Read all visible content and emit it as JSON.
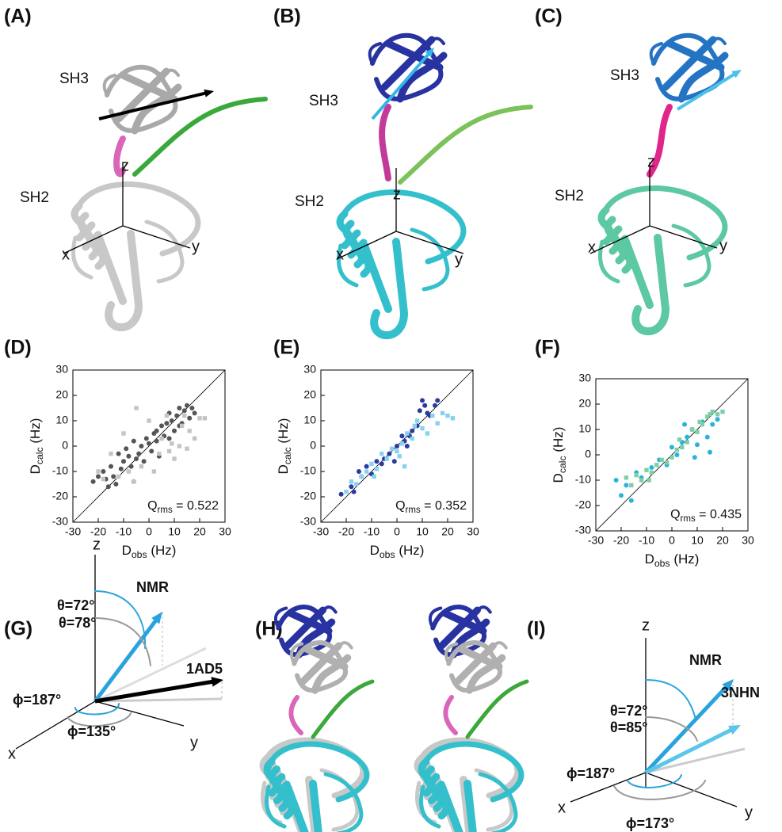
{
  "figure": {
    "structures": [
      {
        "label": "(A)",
        "sh3": "SH3",
        "sh2": "SH2",
        "axes": [
          "x",
          "y",
          "z"
        ]
      },
      {
        "label": "(B)",
        "sh3": "SH3",
        "sh2": "SH2",
        "axes": [
          "x",
          "y",
          "z"
        ]
      },
      {
        "label": "(C)",
        "sh3": "SH3",
        "sh2": "SH2",
        "axes": [
          "x",
          "y",
          "z"
        ]
      }
    ],
    "vector_g": {
      "label": "(G)",
      "axes": [
        "x",
        "y",
        "z"
      ],
      "texts": [
        "NMR",
        "1AD5",
        "θ=72°",
        "θ=78°",
        "ϕ=187°",
        "ϕ=135°"
      ]
    },
    "overlay_h": {
      "label": "(H)"
    },
    "vector_i": {
      "label": "(I)",
      "axes": [
        "x",
        "y",
        "z"
      ],
      "texts": [
        "NMR",
        "3NHN",
        "θ=72°",
        "θ=85°",
        "ϕ=187°",
        "ϕ=173°"
      ]
    }
  },
  "chart_data": [
    {
      "type": "scatter",
      "panel": "(D)",
      "xlabel": {
        "main": "D",
        "sub": "obs",
        "rest": " (Hz)"
      },
      "ylabel": {
        "main": "D",
        "sub": "calc",
        "rest": " (Hz)"
      },
      "annotation": {
        "main": "Q",
        "sub": "rms",
        "rest": " = 0.522"
      },
      "xlim": [
        -30,
        30
      ],
      "ylim": [
        -30,
        30
      ],
      "xticks": [
        -30,
        -20,
        -10,
        0,
        10,
        20,
        30
      ],
      "yticks": [
        -30,
        -20,
        -10,
        0,
        10,
        20,
        30
      ],
      "series": [
        {
          "color": "#555555",
          "marker": "circle",
          "x": [
            -22,
            -20,
            -18,
            -17,
            -15,
            -14,
            -12,
            -11,
            -10,
            -9,
            -8,
            -7,
            -6,
            -5,
            -4,
            -3,
            -2,
            -1,
            0,
            1,
            2,
            3,
            4,
            5,
            6,
            7,
            8,
            9,
            10,
            11,
            12,
            13,
            14,
            15,
            16,
            17,
            18,
            -16,
            -13,
            -6,
            3,
            8,
            12
          ],
          "values": [
            -14,
            -12,
            -10,
            -13,
            -8,
            -12,
            -3,
            -9,
            -6,
            -1,
            -4,
            -8,
            2,
            -5,
            -3,
            0,
            -6,
            3,
            1,
            -2,
            5,
            2,
            -4,
            8,
            4,
            9,
            3,
            10,
            6,
            12,
            15,
            9,
            14,
            16,
            11,
            15,
            13,
            -16,
            -15,
            -14,
            6,
            13,
            8
          ]
        },
        {
          "color": "#c4c4c4",
          "marker": "square",
          "x": [
            -20,
            -15,
            -12,
            -10,
            -8,
            -5,
            -3,
            0,
            2,
            4,
            5,
            7,
            8,
            10,
            12,
            13,
            15,
            16,
            18,
            20,
            22,
            -18,
            -6,
            9,
            14
          ],
          "values": [
            -10,
            -3,
            -12,
            5,
            -10,
            15,
            -8,
            10,
            -10,
            -3,
            3,
            12,
            -2,
            -5,
            0,
            8,
            -1,
            6,
            3,
            11,
            11,
            -13,
            -14,
            1,
            12
          ]
        }
      ]
    },
    {
      "type": "scatter",
      "panel": "(E)",
      "xlabel": {
        "main": "D",
        "sub": "obs",
        "rest": " (Hz)"
      },
      "ylabel": {
        "main": "D",
        "sub": "calc",
        "rest": " (Hz)"
      },
      "annotation": {
        "main": "Q",
        "sub": "rms",
        "rest": " = 0.352"
      },
      "xlim": [
        -30,
        30
      ],
      "ylim": [
        -30,
        30
      ],
      "xticks": [
        -30,
        -20,
        -10,
        0,
        10,
        20,
        30
      ],
      "yticks": [
        -30,
        -20,
        -10,
        0,
        10,
        20,
        30
      ],
      "series": [
        {
          "color": "#2b3a9e",
          "marker": "circle",
          "x": [
            -22,
            -18,
            -17,
            -15,
            -12,
            -10,
            -8,
            -5,
            -3,
            -1,
            0,
            2,
            3,
            5,
            6,
            8,
            9,
            10,
            11,
            12,
            13,
            15,
            16,
            -14,
            -6,
            4
          ],
          "values": [
            -19,
            -16,
            -18,
            -10,
            -8,
            -11,
            -6,
            -5,
            -3,
            -6,
            0,
            4,
            2,
            4,
            6,
            8,
            14,
            18,
            16,
            13,
            12,
            16,
            18,
            -12,
            -7,
            0
          ]
        },
        {
          "color": "#86d2ef",
          "marker": "square",
          "x": [
            -20,
            -18,
            -16,
            -14,
            -12,
            -10,
            -8,
            -6,
            -4,
            -2,
            0,
            1,
            3,
            4,
            6,
            8,
            10,
            12,
            14,
            16,
            18,
            20,
            22,
            -9,
            2,
            7
          ],
          "values": [
            -18,
            -14,
            -15,
            -12,
            -10,
            -7,
            -9,
            -3,
            -5,
            -1,
            -2,
            -4,
            -8,
            5,
            3,
            10,
            7,
            5,
            12,
            9,
            13,
            12,
            11,
            -12,
            1,
            8
          ]
        }
      ]
    },
    {
      "type": "scatter",
      "panel": "(F)",
      "xlabel": {
        "main": "D",
        "sub": "obs",
        "rest": " (Hz)"
      },
      "ylabel": {
        "main": "D",
        "sub": "calc",
        "rest": " (Hz)"
      },
      "annotation": {
        "main": "Q",
        "sub": "rms",
        "rest": " = 0.435"
      },
      "xlim": [
        -30,
        30
      ],
      "ylim": [
        -30,
        30
      ],
      "xticks": [
        -30,
        -20,
        -10,
        0,
        10,
        20,
        30
      ],
      "yticks": [
        -30,
        -20,
        -10,
        0,
        10,
        20,
        30
      ],
      "series": [
        {
          "color": "#2ab3dc",
          "marker": "circle",
          "x": [
            -20,
            -18,
            -16,
            -12,
            -8,
            -5,
            -2,
            0,
            2,
            4,
            6,
            8,
            10,
            12,
            14,
            15,
            16,
            18,
            -22,
            -14,
            5,
            9
          ],
          "values": [
            -16,
            -12,
            -18,
            -9,
            -5,
            -2,
            -4,
            3,
            0,
            5,
            7,
            10,
            4,
            13,
            7,
            1,
            12,
            14,
            -10,
            -7,
            12,
            -1
          ]
        },
        {
          "color": "#7fcfa6",
          "marker": "square",
          "x": [
            -18,
            -16,
            -14,
            -12,
            -10,
            -8,
            -6,
            -4,
            -2,
            0,
            2,
            4,
            6,
            8,
            10,
            12,
            14,
            15,
            16,
            18,
            20,
            -9,
            3,
            11
          ],
          "values": [
            -9,
            -12,
            -8,
            -10,
            -6,
            -7,
            -4,
            -2,
            -3,
            -1,
            2,
            3,
            5,
            10,
            9,
            12,
            15,
            16,
            17,
            16,
            17,
            -10,
            6,
            13
          ]
        }
      ]
    }
  ]
}
